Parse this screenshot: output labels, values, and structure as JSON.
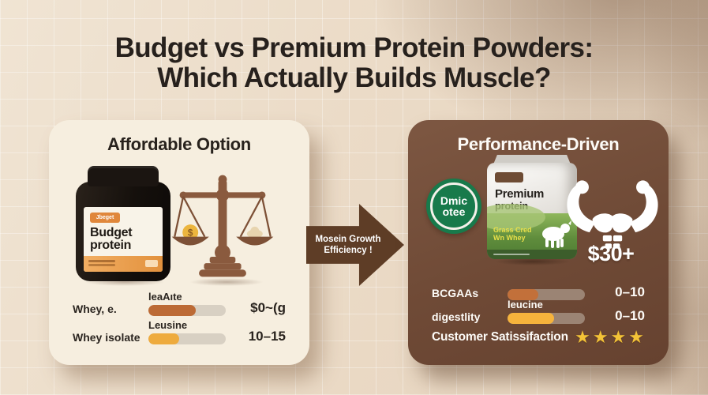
{
  "title": {
    "line1": "Budget vs Premium Protein Powders:",
    "line2": "Which Actually Builds Muscle?"
  },
  "arrow": {
    "line1": "Mosein Growth",
    "line2": "Efficiency !"
  },
  "left_card": {
    "heading": "Affordable Option",
    "jar": {
      "badge": "Jbeget",
      "name_line1": "Budget",
      "name_line2": "protein"
    },
    "scale_coin_symbol": "$",
    "rows": [
      {
        "label": "Whey, e.",
        "bar_label": "leaAıte",
        "value": "$0~(g",
        "fill_pct": 61,
        "fill_color": "#bc6a35"
      },
      {
        "label": "Whey isolate",
        "bar_label": "Leusine",
        "value": "10–15",
        "fill_pct": 40,
        "fill_color": "#eeab3e"
      }
    ]
  },
  "right_card": {
    "heading": "Performance-Driven",
    "badge": {
      "line1": "Dmic",
      "line2": "otee"
    },
    "pouch": {
      "name_line1": "Premium",
      "name_line2": "protein",
      "sub_line1": "Grass Cred",
      "sub_line2": "Wn Whey"
    },
    "price": "$30+",
    "rows": [
      {
        "label": "BCGAAs",
        "bar_label": "",
        "value": "0–10",
        "fill_pct": 40,
        "fill_color": "#c2703a"
      },
      {
        "label": "digestlity",
        "bar_label": "leucine",
        "value": "0–10",
        "fill_pct": 60,
        "fill_color": "#f6b33c"
      }
    ],
    "satisfaction": {
      "label": "Customer Satissifaction",
      "stars": 4
    }
  },
  "palette": {
    "page_bg": "#ebdbc7",
    "title_text": "#27211d",
    "left_card_bg": "#f6eedf",
    "right_card_bg": "#76503b",
    "arrow_brown": "#5e3d26",
    "rust_accent": "#bc6a35",
    "amber_accent": "#eeab3e",
    "green_badge": "#187a4b",
    "star_gold": "#f3c337"
  }
}
